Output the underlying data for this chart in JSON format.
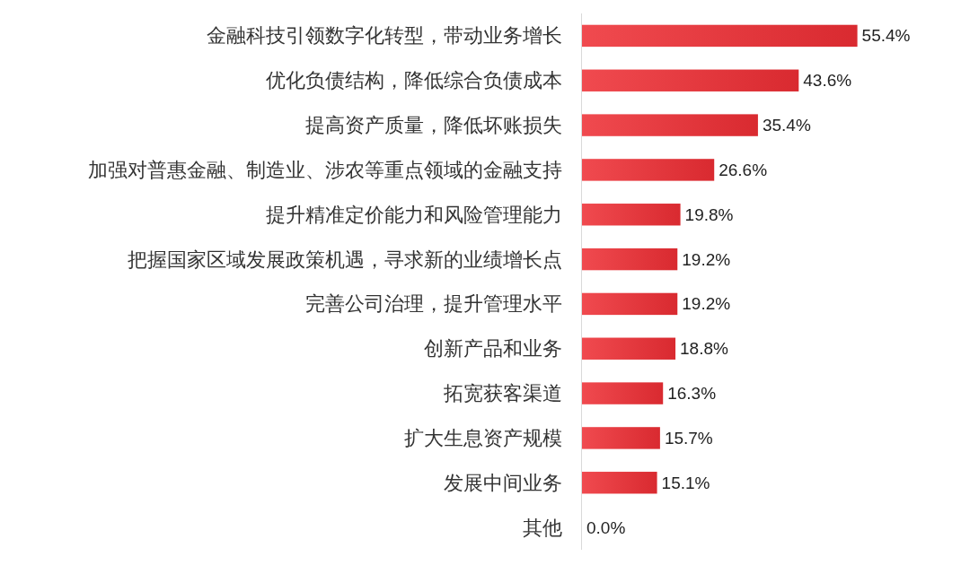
{
  "chart_data": {
    "type": "bar",
    "orientation": "horizontal",
    "categories": [
      "金融科技引领数字化转型，带动业务增长",
      "优化负债结构，降低综合负债成本",
      "提高资产质量，降低坏账损失",
      "加强对普惠金融、制造业、涉农等重点领域的金融支持",
      "提升精准定价能力和风险管理能力",
      "把握国家区域发展政策机遇，寻求新的业绩增长点",
      "完善公司治理，提升管理水平",
      "创新产品和业务",
      "拓宽获客渠道",
      "扩大生息资产规模",
      "发展中间业务",
      "其他"
    ],
    "values": [
      55.4,
      43.6,
      35.4,
      26.6,
      19.8,
      19.2,
      19.2,
      18.8,
      16.3,
      15.7,
      15.1,
      0.0
    ],
    "value_labels": [
      "55.4%",
      "43.6%",
      "35.4%",
      "26.6%",
      "19.8%",
      "19.2%",
      "19.2%",
      "18.8%",
      "16.3%",
      "15.7%",
      "15.1%",
      "0.0%"
    ],
    "color": "#d92a30"
  }
}
